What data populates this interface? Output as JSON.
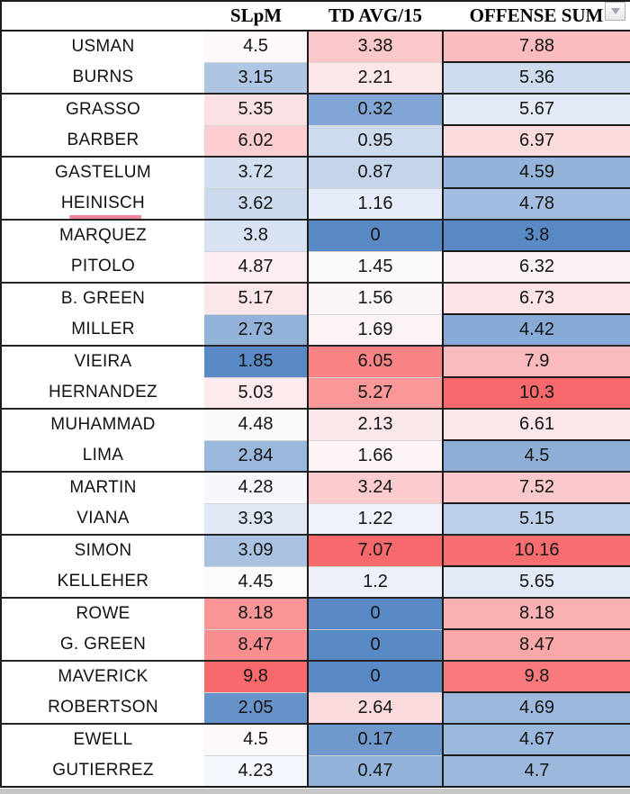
{
  "window": {
    "background_color": "#c6c6c6",
    "sheet_background": "#ffffff",
    "border_color": "#1b1b1b"
  },
  "controls": {
    "dropdown_button": {
      "icon": "chevron-down"
    }
  },
  "table": {
    "columns": [
      {
        "key": "name",
        "label": ""
      },
      {
        "key": "slpm",
        "label": "SLpM"
      },
      {
        "key": "td",
        "label": "TD AVG/15"
      },
      {
        "key": "off",
        "label": "OFFENSE SUM"
      }
    ],
    "rows": [
      {
        "name": "USMAN",
        "slpm": 4.5,
        "td": 3.38,
        "off": 7.88
      },
      {
        "name": "BURNS",
        "slpm": 3.15,
        "td": 2.21,
        "off": 5.36
      },
      {
        "name": "GRASSO",
        "slpm": 5.35,
        "td": 0.32,
        "off": 5.67
      },
      {
        "name": "BARBER",
        "slpm": 6.02,
        "td": 0.95,
        "off": 6.97
      },
      {
        "name": "GASTELUM",
        "slpm": 3.72,
        "td": 0.87,
        "off": 4.59
      },
      {
        "name": "HEINISCH",
        "slpm": 3.62,
        "td": 1.16,
        "off": 4.78
      },
      {
        "name": "MARQUEZ",
        "slpm": 3.8,
        "td": 0,
        "off": 3.8
      },
      {
        "name": "PITOLO",
        "slpm": 4.87,
        "td": 1.45,
        "off": 6.32
      },
      {
        "name": "B. GREEN",
        "slpm": 5.17,
        "td": 1.56,
        "off": 6.73
      },
      {
        "name": "MILLER",
        "slpm": 2.73,
        "td": 1.69,
        "off": 4.42
      },
      {
        "name": "VIEIRA",
        "slpm": 1.85,
        "td": 6.05,
        "off": 7.9
      },
      {
        "name": "HERNANDEZ",
        "slpm": 5.03,
        "td": 5.27,
        "off": 10.3
      },
      {
        "name": "MUHAMMAD",
        "slpm": 4.48,
        "td": 2.13,
        "off": 6.61
      },
      {
        "name": "LIMA",
        "slpm": 2.84,
        "td": 1.66,
        "off": 4.5
      },
      {
        "name": "MARTIN",
        "slpm": 4.28,
        "td": 3.24,
        "off": 7.52
      },
      {
        "name": "VIANA",
        "slpm": 3.93,
        "td": 1.22,
        "off": 5.15
      },
      {
        "name": "SIMON",
        "slpm": 3.09,
        "td": 7.07,
        "off": 10.16
      },
      {
        "name": "KELLEHER",
        "slpm": 4.45,
        "td": 1.2,
        "off": 5.65
      },
      {
        "name": "ROWE",
        "slpm": 8.18,
        "td": 0,
        "off": 8.18
      },
      {
        "name": "G. GREEN",
        "slpm": 8.47,
        "td": 0,
        "off": 8.47
      },
      {
        "name": "MAVERICK",
        "slpm": 9.8,
        "td": 0,
        "off": 9.8
      },
      {
        "name": "ROBERTSON",
        "slpm": 2.05,
        "td": 2.64,
        "off": 4.69
      },
      {
        "name": "EWELL",
        "slpm": 4.5,
        "td": 0.17,
        "off": 4.67
      },
      {
        "name": "GUTIERREZ",
        "slpm": 4.23,
        "td": 0.47,
        "off": 4.7
      }
    ],
    "conditional_formatting": {
      "type": "3-color-scale",
      "low_color": "#5A8AC6",
      "mid_color": "#FCFCFF",
      "high_color": "#F8696B",
      "midpoint": "50th-percentile",
      "applies_to": [
        "slpm",
        "td",
        "off"
      ]
    },
    "annotations": {
      "underlined_name": "HEINISCH",
      "underline_color": "#F2849B"
    }
  }
}
